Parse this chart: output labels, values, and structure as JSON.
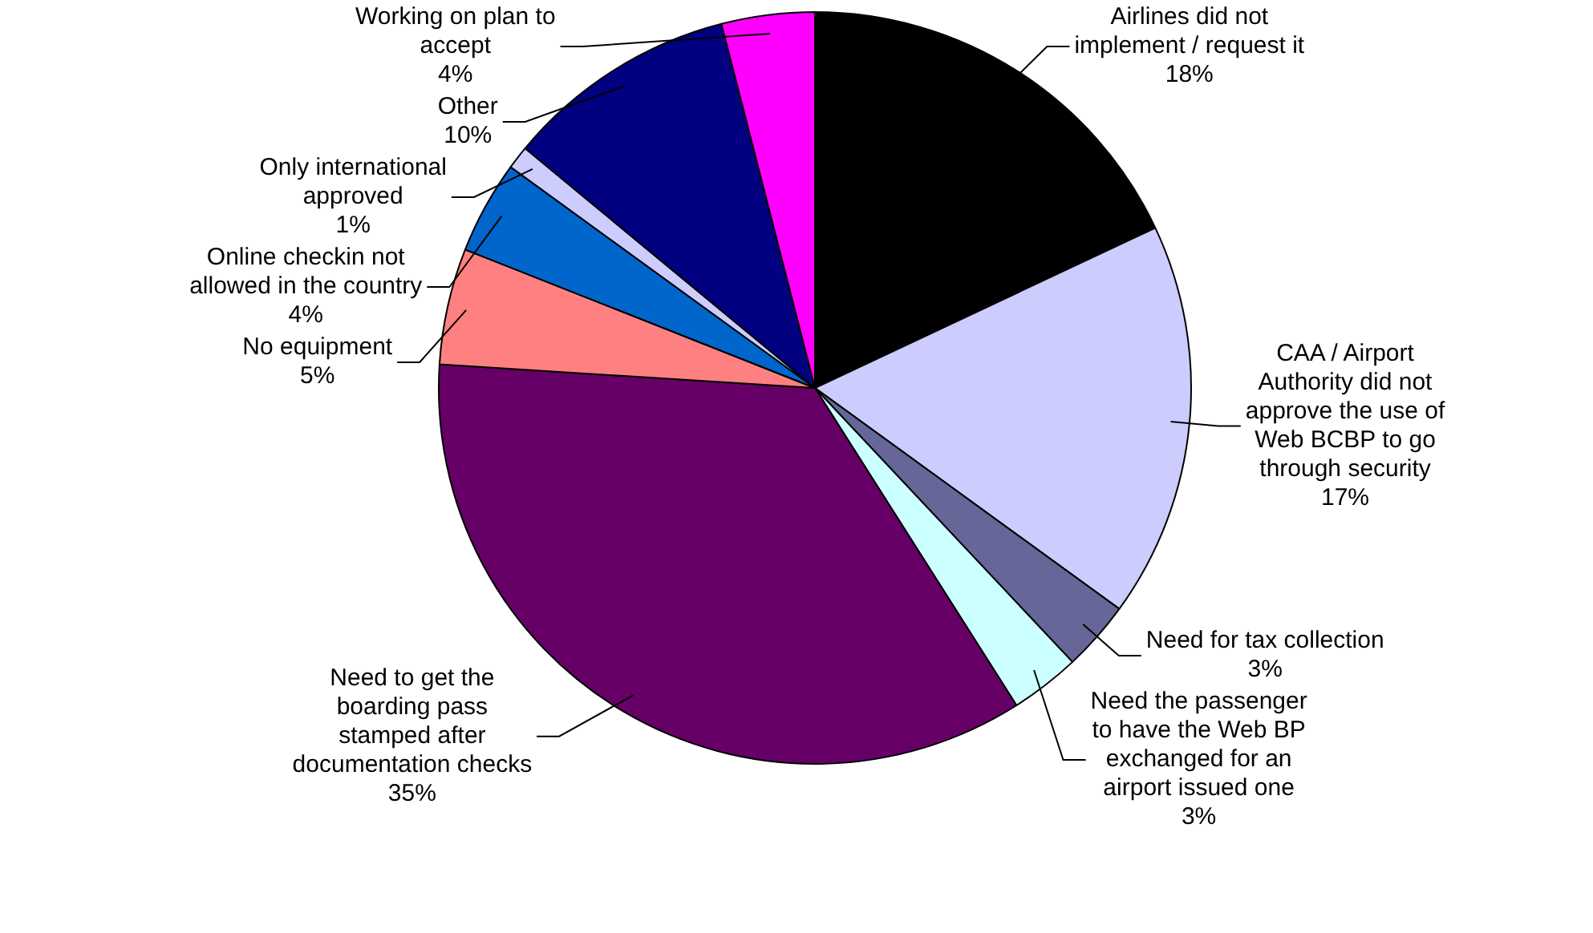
{
  "chart_data": {
    "type": "pie",
    "categories": [
      "Airlines did not implement / request it",
      "CAA / Airport Authority did not approve the use of Web BCBP to go through security",
      "Need for tax collection",
      "Need the passenger to have the Web BP exchanged for an airport issued one",
      "Need to get the boarding pass stamped after documentation checks",
      "No equipment",
      "Online checkin not allowed in the country",
      "Only international approved",
      "Other",
      "Working on plan to accept"
    ],
    "values": [
      18,
      17,
      3,
      3,
      35,
      5,
      4,
      1,
      10,
      4
    ],
    "colors": [
      "#000000",
      "#ccccff",
      "#666699",
      "#ccffff",
      "#660066",
      "#ff8080",
      "#0066cc",
      "#ccccff",
      "#000080",
      "#ff00ff"
    ],
    "value_labels": [
      "18%",
      "17%",
      "3%",
      "3%",
      "35%",
      "5%",
      "4%",
      "1%",
      "10%",
      "4%"
    ],
    "legend": false
  }
}
